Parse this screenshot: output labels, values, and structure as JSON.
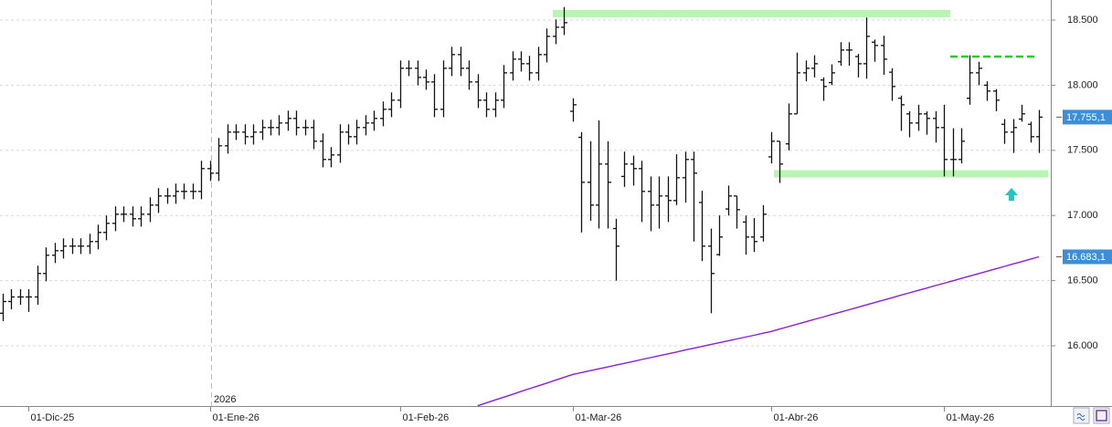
{
  "chart_data": {
    "type": "ohlc",
    "categories": [
      null,
      null,
      null,
      "01-Dic-25",
      null,
      null,
      null,
      null,
      null,
      null,
      null,
      null,
      null,
      null,
      null,
      null,
      null,
      null,
      null,
      null,
      null,
      null,
      null,
      null,
      "01-Ene-26",
      null,
      null,
      null,
      null,
      null,
      null,
      null,
      null,
      null,
      null,
      null,
      null,
      null,
      null,
      null,
      null,
      null,
      null,
      null,
      null,
      null,
      "01-Feb-26",
      null,
      null,
      null,
      null,
      null,
      null,
      null,
      null,
      null,
      null,
      null,
      null,
      null,
      null,
      null,
      null,
      null,
      null,
      null,
      "01-Mar-26",
      null,
      null,
      null,
      null,
      null,
      null,
      null,
      null,
      null,
      null,
      null,
      null,
      null,
      null,
      null,
      null,
      null,
      null,
      null,
      null,
      null,
      null,
      "01-Abr-26",
      null,
      null,
      null,
      null,
      null,
      null,
      null,
      null,
      null,
      null,
      null,
      null,
      null,
      null,
      null,
      null,
      null,
      null,
      null,
      "01-May-26",
      null,
      null,
      null,
      null,
      null,
      null,
      null,
      null,
      null,
      null,
      null
    ],
    "year_label": "2026",
    "ylim": [
      15538,
      18654
    ],
    "yticks": [
      {
        "value": 16000,
        "label": "16.000"
      },
      {
        "value": 16500,
        "label": "16.500"
      },
      {
        "value": 17000,
        "label": "17.000"
      },
      {
        "value": 17500,
        "label": "17.500"
      },
      {
        "value": 18000,
        "label": "18.000"
      },
      {
        "value": 18500,
        "label": "18.500"
      }
    ],
    "grid": true,
    "levels": [
      18550,
      18220,
      17320
    ],
    "series": [
      {
        "type": "ohlc",
        "color": "#111111",
        "last_label": "17.755,1",
        "open": [
          16250,
          16340,
          16375,
          16375,
          16375,
          16555,
          16695,
          16730,
          16765,
          16765,
          16765,
          16800,
          16870,
          16940,
          17010,
          17010,
          16975,
          17010,
          17080,
          17150,
          17150,
          17185,
          17185,
          17185,
          17360,
          17325,
          17535,
          17640,
          17640,
          17605,
          17640,
          17675,
          17675,
          17710,
          17745,
          17675,
          17675,
          17570,
          17430,
          17465,
          17640,
          17605,
          17675,
          17710,
          17745,
          17815,
          17885,
          18130,
          18130,
          18060,
          18025,
          17815,
          18130,
          18235,
          18130,
          18025,
          17885,
          17815,
          17885,
          18095,
          18200,
          18165,
          18095,
          18235,
          18375,
          18445,
          17800,
          17600,
          17255,
          17080,
          17395,
          16900,
          17300,
          17395,
          17360,
          17185,
          17080,
          17150,
          17115,
          17290,
          17430,
          17100,
          16765,
          16700,
          17050,
          17150,
          16950,
          16835,
          16835,
          17450,
          17570,
          17550,
          17780,
          18095,
          18130,
          18040,
          18020,
          18180,
          18270,
          18220,
          18165,
          18330,
          18305,
          18100,
          17900,
          17780,
          17710,
          17780,
          17745,
          17675,
          17430,
          17430,
          17900,
          18095,
          18000,
          17955,
          17700,
          17640,
          17740,
          17700,
          17605
        ],
        "high": [
          16400,
          16435,
          16435,
          16435,
          16615,
          16755,
          16790,
          16825,
          16825,
          16825,
          16860,
          16930,
          17000,
          17070,
          17070,
          17070,
          17070,
          17140,
          17210,
          17210,
          17245,
          17245,
          17245,
          17420,
          17420,
          17595,
          17700,
          17700,
          17700,
          17700,
          17735,
          17735,
          17770,
          17805,
          17805,
          17735,
          17735,
          17630,
          17525,
          17700,
          17700,
          17735,
          17770,
          17805,
          17875,
          17945,
          18190,
          18190,
          18190,
          18120,
          18085,
          18190,
          18295,
          18295,
          18190,
          18085,
          17945,
          17945,
          18155,
          18260,
          18260,
          18225,
          18295,
          18435,
          18505,
          18600,
          17900,
          17640,
          17570,
          17730,
          17570,
          16975,
          17490,
          17460,
          17420,
          17300,
          17300,
          17300,
          17470,
          17490,
          17490,
          17190,
          16900,
          17000,
          17230,
          17150,
          17000,
          16980,
          17080,
          17640,
          17570,
          17860,
          18250,
          18190,
          18230,
          18060,
          18160,
          18330,
          18330,
          18240,
          18520,
          18350,
          18380,
          18130,
          17920,
          17800,
          17850,
          17800,
          17800,
          17850,
          17670,
          17670,
          18230,
          18180,
          18030,
          17970,
          17740,
          17740,
          17850,
          17720,
          17810
        ],
        "low": [
          16190,
          16280,
          16315,
          16260,
          16315,
          16495,
          16635,
          16670,
          16705,
          16705,
          16705,
          16740,
          16810,
          16880,
          16950,
          16915,
          16915,
          16950,
          17020,
          17090,
          17090,
          17125,
          17125,
          17125,
          17265,
          17265,
          17475,
          17580,
          17545,
          17545,
          17580,
          17615,
          17615,
          17650,
          17615,
          17615,
          17510,
          17370,
          17370,
          17405,
          17545,
          17545,
          17615,
          17650,
          17685,
          17755,
          17825,
          18070,
          18000,
          17965,
          17755,
          17755,
          18070,
          18070,
          17965,
          17825,
          17755,
          17755,
          17825,
          18035,
          18105,
          18035,
          18035,
          18175,
          18315,
          18385,
          17720,
          16870,
          16960,
          16900,
          16900,
          16500,
          17220,
          17230,
          16950,
          16880,
          16900,
          16950,
          17080,
          17100,
          16800,
          16650,
          16250,
          16690,
          17000,
          16900,
          16700,
          16720,
          16800,
          17400,
          17250,
          17500,
          17780,
          18030,
          18060,
          17880,
          18000,
          18150,
          18150,
          18060,
          18050,
          18180,
          18080,
          17880,
          17650,
          17600,
          17650,
          17620,
          17560,
          17300,
          17300,
          17400,
          17850,
          18000,
          17880,
          17800,
          17550,
          17480,
          17720,
          17560,
          17480
        ],
        "close": [
          16340,
          16375,
          16375,
          16375,
          16555,
          16695,
          16730,
          16765,
          16765,
          16765,
          16800,
          16870,
          16940,
          17010,
          17010,
          16975,
          17010,
          17080,
          17150,
          17150,
          17185,
          17185,
          17185,
          17360,
          17325,
          17535,
          17640,
          17640,
          17605,
          17640,
          17675,
          17675,
          17710,
          17745,
          17675,
          17675,
          17570,
          17430,
          17465,
          17640,
          17605,
          17675,
          17710,
          17745,
          17815,
          17885,
          18130,
          18130,
          18060,
          18025,
          17815,
          18130,
          18235,
          18130,
          18025,
          17885,
          17815,
          17885,
          18095,
          18200,
          18165,
          18095,
          18235,
          18375,
          18445,
          18480,
          17850,
          17255,
          17080,
          17395,
          17255,
          16765,
          17395,
          17360,
          17185,
          17080,
          17150,
          17115,
          17290,
          17430,
          17325,
          16765,
          16555,
          16835,
          17150,
          17045,
          16835,
          16800,
          17010,
          17570,
          17395,
          17780,
          18095,
          18130,
          18165,
          17990,
          18095,
          18270,
          18270,
          18165,
          18375,
          18305,
          18200,
          17990,
          17850,
          17710,
          17780,
          17745,
          17675,
          17430,
          17430,
          17570,
          18095,
          18130,
          17955,
          17885,
          17640,
          17675,
          17780,
          17605,
          17755.1
        ]
      },
      {
        "type": "line",
        "color": "#8a1fd6",
        "last_label": "16.683,1",
        "values": [
          null,
          null,
          null,
          null,
          null,
          null,
          null,
          null,
          null,
          null,
          null,
          null,
          null,
          null,
          null,
          null,
          null,
          null,
          null,
          null,
          null,
          null,
          null,
          null,
          null,
          null,
          null,
          null,
          null,
          null,
          null,
          null,
          null,
          null,
          null,
          null,
          null,
          null,
          null,
          null,
          null,
          null,
          null,
          null,
          null,
          null,
          null,
          null,
          null,
          null,
          null,
          null,
          null,
          null,
          null,
          15540,
          15562,
          15584,
          15605,
          15627,
          15649,
          15671,
          15693,
          15714,
          15736,
          15758,
          15780,
          15794,
          15809,
          15823,
          15837,
          15852,
          15866,
          15880,
          15895,
          15909,
          15924,
          15938,
          15952,
          15967,
          15981,
          15995,
          16010,
          16024,
          16038,
          16053,
          16067,
          16081,
          16096,
          16110,
          16129,
          16147,
          16166,
          16184,
          16203,
          16221,
          16240,
          16258,
          16277,
          16295,
          16314,
          16332,
          16351,
          16369,
          16388,
          16406,
          16425,
          16443,
          16462,
          16480,
          16498,
          16517,
          16535,
          16554,
          16572,
          16591,
          16609,
          16628,
          16646,
          16665,
          16683.1
        ]
      }
    ]
  }
}
